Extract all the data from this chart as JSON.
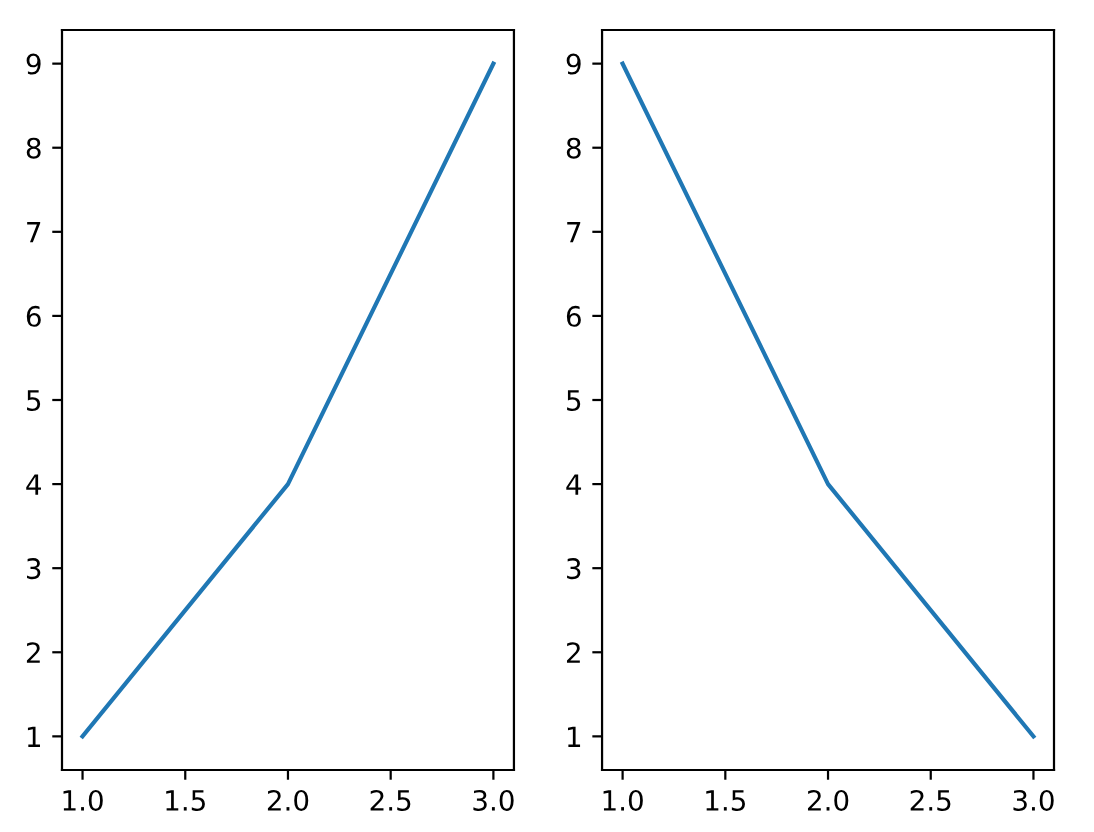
{
  "chart_data": [
    {
      "type": "line",
      "x": [
        1,
        2,
        3
      ],
      "series": [
        {
          "color": "#1f77b4",
          "values": [
            1,
            4,
            9
          ]
        }
      ],
      "xlim": [
        0.9,
        3.1
      ],
      "ylim": [
        0.6,
        9.4
      ],
      "xticks": [
        {
          "value": 1,
          "label": "1.0"
        },
        {
          "value": 1.5,
          "label": "1.5"
        },
        {
          "value": 2,
          "label": "2.0"
        },
        {
          "value": 2.5,
          "label": "2.5"
        },
        {
          "value": 3,
          "label": "3.0"
        }
      ],
      "yticks": [
        1,
        2,
        3,
        4,
        5,
        6,
        7,
        8,
        9
      ],
      "grid": false,
      "marker": "none",
      "line_style": "solid"
    },
    {
      "type": "line",
      "x": [
        1,
        2,
        3
      ],
      "series": [
        {
          "color": "#1f77b4",
          "values": [
            9,
            4,
            1
          ]
        }
      ],
      "xlim": [
        0.9,
        3.1
      ],
      "ylim": [
        0.6,
        9.4
      ],
      "xticks": [
        {
          "value": 1,
          "label": "1.0"
        },
        {
          "value": 1.5,
          "label": "1.5"
        },
        {
          "value": 2,
          "label": "2.0"
        },
        {
          "value": 2.5,
          "label": "2.5"
        },
        {
          "value": 3,
          "label": "3.0"
        }
      ],
      "yticks": [
        1,
        2,
        3,
        4,
        5,
        6,
        7,
        8,
        9
      ],
      "grid": false,
      "marker": "none",
      "line_style": "solid"
    }
  ]
}
